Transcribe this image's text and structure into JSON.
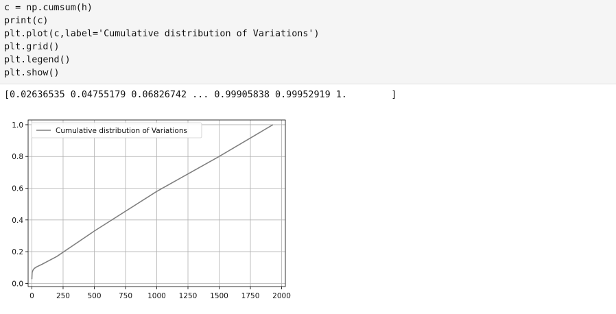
{
  "code_cell": {
    "lines": [
      "c = np.cumsum(h)",
      "print(c)",
      "plt.plot(c,label='Cumulative distribution of Variations')",
      "plt.grid()",
      "plt.legend()",
      "plt.show()"
    ]
  },
  "output": {
    "text": "[0.02636535 0.04755179 0.06826742 ... 0.99905838 0.99952919 1.        ]"
  },
  "chart_data": {
    "type": "line",
    "xlim": [
      -30,
      2030
    ],
    "ylim": [
      -0.02,
      1.03
    ],
    "x_ticks": [
      0,
      250,
      500,
      750,
      1000,
      1250,
      1500,
      1750,
      2000
    ],
    "x_tick_labels": [
      "0",
      "250",
      "500",
      "750",
      "1000",
      "1250",
      "1500",
      "1750",
      "2000"
    ],
    "y_ticks": [
      0.0,
      0.2,
      0.4,
      0.6,
      0.8,
      1.0
    ],
    "y_tick_labels": [
      "0.0",
      "0.2",
      "0.4",
      "0.6",
      "0.8",
      "1.0"
    ],
    "grid": true,
    "legend_position": "upper-left",
    "series": [
      {
        "name": "Cumulative distribution of Variations",
        "color": "#7f7f7f",
        "x": [
          0,
          1,
          2,
          5,
          10,
          20,
          40,
          80,
          200,
          500,
          1000,
          1500,
          1930
        ],
        "y": [
          0.02636535,
          0.04755179,
          0.06826742,
          0.075,
          0.085,
          0.095,
          0.105,
          0.12,
          0.17,
          0.33,
          0.58,
          0.8,
          1.0
        ]
      }
    ]
  }
}
